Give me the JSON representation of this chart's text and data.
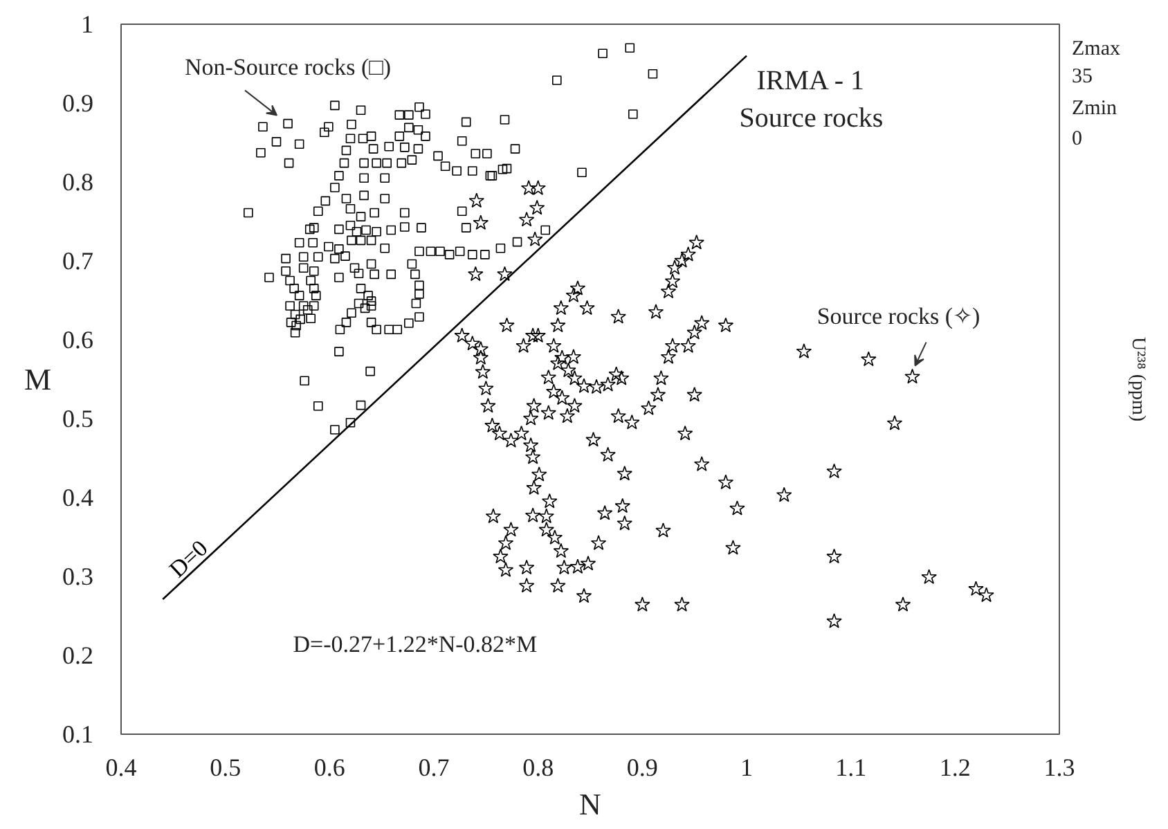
{
  "chart_data": {
    "type": "scatter",
    "xlabel": "N",
    "ylabel": "M",
    "xlim": [
      0.4,
      1.3
    ],
    "ylim": [
      0.1,
      1
    ],
    "xticks": [
      0.4,
      0.5,
      0.6,
      0.7,
      0.8,
      0.9,
      1,
      1.1,
      1.2,
      1.3
    ],
    "yticks": [
      0.1,
      0.2,
      0.3,
      0.4,
      0.5,
      0.6,
      0.7,
      0.8,
      0.9,
      1
    ],
    "series": [
      {
        "type": "scatter",
        "marker": "square",
        "color": "#000000",
        "x": [
          0.605,
          0.63,
          0.536,
          0.56,
          0.549,
          0.571,
          0.534,
          0.561,
          0.599,
          0.595,
          0.621,
          0.62,
          0.632,
          0.64,
          0.616,
          0.642,
          0.667,
          0.676,
          0.686,
          0.692,
          0.676,
          0.685,
          0.692,
          0.667,
          0.657,
          0.672,
          0.685,
          0.731,
          0.727,
          0.74,
          0.751,
          0.704,
          0.711,
          0.722,
          0.737,
          0.754,
          0.766,
          0.614,
          0.633,
          0.645,
          0.655,
          0.669,
          0.679,
          0.609,
          0.633,
          0.653,
          0.605,
          0.616,
          0.633,
          0.653,
          0.596,
          0.589,
          0.522,
          0.62,
          0.63,
          0.643,
          0.672,
          0.727,
          0.731,
          0.581,
          0.585,
          0.609,
          0.62,
          0.626,
          0.635,
          0.645,
          0.659,
          0.672,
          0.688,
          0.571,
          0.584,
          0.599,
          0.609,
          0.621,
          0.63,
          0.64,
          0.653,
          0.686,
          0.697,
          0.706,
          0.715,
          0.725,
          0.737,
          0.749,
          0.558,
          0.575,
          0.589,
          0.605,
          0.615,
          0.558,
          0.542,
          0.562,
          0.575,
          0.585,
          0.582,
          0.609,
          0.624,
          0.628,
          0.64,
          0.643,
          0.659,
          0.679,
          0.682,
          0.686,
          0.686,
          0.566,
          0.571,
          0.585,
          0.587,
          0.562,
          0.575,
          0.585,
          0.579,
          0.567,
          0.563,
          0.572,
          0.582,
          0.568,
          0.567,
          0.63,
          0.637,
          0.628,
          0.64,
          0.634,
          0.64,
          0.621,
          0.616,
          0.61,
          0.64,
          0.645,
          0.657,
          0.665,
          0.676,
          0.686,
          0.683,
          0.609,
          0.639,
          0.576,
          0.589,
          0.63,
          0.605,
          0.62,
          0.862,
          0.888,
          0.818,
          0.91,
          0.891,
          0.768,
          0.778,
          0.77,
          0.756,
          0.842,
          0.807,
          0.78,
          0.764
        ],
        "values": [
          0.897,
          0.891,
          0.87,
          0.874,
          0.851,
          0.848,
          0.837,
          0.824,
          0.87,
          0.863,
          0.873,
          0.855,
          0.855,
          0.858,
          0.84,
          0.842,
          0.885,
          0.885,
          0.895,
          0.886,
          0.869,
          0.866,
          0.858,
          0.858,
          0.845,
          0.844,
          0.842,
          0.876,
          0.852,
          0.836,
          0.836,
          0.833,
          0.82,
          0.814,
          0.814,
          0.808,
          0.816,
          0.824,
          0.824,
          0.824,
          0.824,
          0.824,
          0.828,
          0.808,
          0.805,
          0.805,
          0.793,
          0.779,
          0.783,
          0.779,
          0.776,
          0.763,
          0.761,
          0.766,
          0.756,
          0.761,
          0.761,
          0.763,
          0.742,
          0.74,
          0.742,
          0.74,
          0.745,
          0.737,
          0.739,
          0.737,
          0.739,
          0.743,
          0.742,
          0.723,
          0.723,
          0.718,
          0.715,
          0.726,
          0.726,
          0.726,
          0.716,
          0.712,
          0.712,
          0.712,
          0.708,
          0.712,
          0.708,
          0.708,
          0.703,
          0.705,
          0.705,
          0.703,
          0.706,
          0.687,
          0.679,
          0.675,
          0.691,
          0.687,
          0.675,
          0.679,
          0.691,
          0.684,
          0.696,
          0.683,
          0.683,
          0.696,
          0.683,
          0.669,
          0.658,
          0.665,
          0.656,
          0.665,
          0.656,
          0.643,
          0.643,
          0.643,
          0.638,
          0.632,
          0.622,
          0.626,
          0.627,
          0.618,
          0.609,
          0.665,
          0.656,
          0.646,
          0.649,
          0.64,
          0.643,
          0.634,
          0.622,
          0.613,
          0.622,
          0.613,
          0.613,
          0.613,
          0.621,
          0.629,
          0.646,
          0.585,
          0.56,
          0.548,
          0.516,
          0.517,
          0.486,
          0.495,
          0.963,
          0.97,
          0.929,
          0.937,
          0.886,
          0.879,
          0.842,
          0.817,
          0.808,
          0.812,
          0.739,
          0.724,
          0.716
        ]
      },
      {
        "type": "scatter",
        "marker": "star",
        "color": "#000000",
        "x": [
          0.791,
          0.8,
          0.799,
          0.789,
          0.797,
          0.768,
          0.952,
          0.944,
          0.938,
          0.931,
          0.929,
          0.925,
          0.838,
          0.834,
          0.847,
          0.822,
          0.819,
          0.77,
          0.877,
          0.913,
          0.795,
          0.8,
          0.786,
          0.815,
          0.823,
          0.834,
          0.829,
          0.835,
          0.844,
          0.856,
          0.867,
          0.875,
          0.88,
          0.81,
          0.815,
          0.823,
          0.835,
          0.81,
          0.796,
          0.793,
          0.877,
          0.89,
          0.906,
          0.915,
          0.918,
          0.925,
          0.929,
          0.944,
          0.95,
          0.957,
          0.95,
          0.941,
          0.853,
          0.756,
          0.763,
          0.784,
          0.741,
          0.745,
          0.74,
          0.727,
          0.737,
          0.745,
          0.745,
          0.747,
          0.75,
          0.752,
          0.774,
          0.793,
          0.795,
          0.819,
          0.828,
          0.867,
          0.957,
          0.801,
          0.796,
          0.811,
          0.795,
          0.808,
          0.757,
          0.774,
          0.808,
          0.816,
          0.769,
          0.764,
          0.822,
          0.769,
          0.789,
          0.825,
          0.838,
          0.848,
          0.858,
          0.789,
          0.819,
          0.844,
          0.864,
          0.881,
          0.883,
          0.883,
          0.92,
          0.9,
          0.98,
          1.055,
          1.117,
          1.159,
          1.142,
          0.98,
          0.991,
          1.036,
          1.084,
          0.987,
          1.084,
          1.175,
          1.15,
          1.22,
          1.23,
          1.084,
          0.938
        ],
        "values": [
          0.792,
          0.792,
          0.767,
          0.752,
          0.727,
          0.683,
          0.723,
          0.708,
          0.7,
          0.691,
          0.674,
          0.661,
          0.665,
          0.656,
          0.64,
          0.64,
          0.618,
          0.618,
          0.629,
          0.635,
          0.605,
          0.605,
          0.592,
          0.592,
          0.577,
          0.578,
          0.561,
          0.551,
          0.541,
          0.54,
          0.543,
          0.556,
          0.551,
          0.552,
          0.534,
          0.526,
          0.516,
          0.507,
          0.516,
          0.5,
          0.503,
          0.495,
          0.513,
          0.53,
          0.551,
          0.578,
          0.592,
          0.592,
          0.609,
          0.621,
          0.53,
          0.481,
          0.473,
          0.491,
          0.481,
          0.481,
          0.776,
          0.748,
          0.683,
          0.605,
          0.595,
          0.588,
          0.577,
          0.559,
          0.538,
          0.516,
          0.472,
          0.466,
          0.451,
          0.57,
          0.503,
          0.454,
          0.442,
          0.429,
          0.412,
          0.395,
          0.377,
          0.376,
          0.376,
          0.359,
          0.359,
          0.349,
          0.342,
          0.325,
          0.332,
          0.308,
          0.311,
          0.311,
          0.312,
          0.316,
          0.342,
          0.288,
          0.288,
          0.275,
          0.38,
          0.389,
          0.367,
          0.43,
          0.358,
          0.264,
          0.618,
          0.585,
          0.575,
          0.553,
          0.494,
          0.419,
          0.386,
          0.403,
          0.433,
          0.336,
          0.325,
          0.299,
          0.264,
          0.284,
          0.276,
          0.243,
          0.264
        ]
      },
      {
        "type": "line",
        "name": "D=0",
        "color": "#000000",
        "x": [
          0.44,
          1.0
        ],
        "values": [
          0.271,
          0.96
        ]
      }
    ],
    "annotations": [
      {
        "text": "Non-Source rocks (□)",
        "x": 0.56,
        "y": 0.874
      },
      {
        "text": "Source rocks (✧)",
        "x": 1.159,
        "y": 0.553
      },
      "IRMA - 1",
      "Source rocks",
      "D=-0.27+1.22*N-0.82*M",
      "Zmax",
      "35",
      "Zmin",
      "0",
      "U²³⁸ (ppm)"
    ]
  }
}
